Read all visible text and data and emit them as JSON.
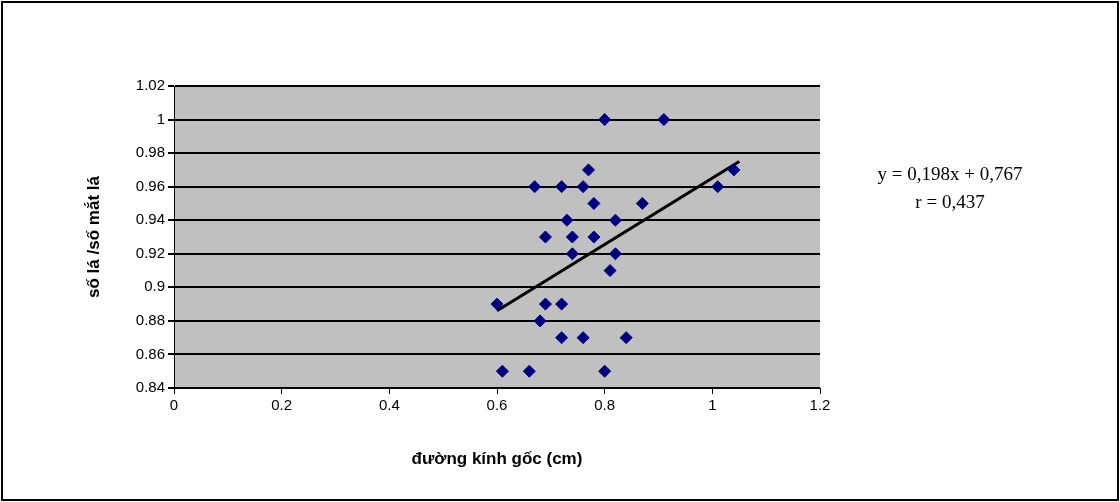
{
  "chart_data": {
    "type": "scatter",
    "xlabel": "đường kính gốc (cm)",
    "ylabel": "số lá /số mắt lá",
    "xlim": [
      0,
      1.2
    ],
    "xticks": [
      0,
      0.2,
      0.4,
      0.6,
      0.8,
      1,
      1.2
    ],
    "ylim": [
      0.84,
      1.02
    ],
    "yticks": [
      0.84,
      0.86,
      0.88,
      0.9,
      0.92,
      0.94,
      0.96,
      0.98,
      1,
      1.02
    ],
    "grid": "y",
    "legend": false,
    "marker": "diamond",
    "annotations": [
      "y = 0,198x + 0,767",
      "r = 0,437"
    ],
    "series": [
      {
        "color": "#000080",
        "x": [
          0.8,
          0.91,
          0.77,
          0.67,
          0.72,
          0.76,
          1.01,
          1.04,
          0.78,
          0.87,
          0.73,
          0.82,
          0.69,
          0.74,
          0.78,
          0.74,
          0.82,
          0.81,
          0.6,
          0.69,
          0.72,
          0.68,
          0.72,
          0.76,
          0.84,
          0.61,
          0.66,
          0.8
        ],
        "values": [
          1,
          1,
          0.97,
          0.96,
          0.96,
          0.96,
          0.96,
          0.97,
          0.95,
          0.95,
          0.94,
          0.94,
          0.93,
          0.93,
          0.93,
          0.92,
          0.92,
          0.91,
          0.89,
          0.89,
          0.89,
          0.88,
          0.87,
          0.87,
          0.87,
          0.85,
          0.85,
          0.85
        ]
      },
      {
        "type": "line",
        "color": "#000000",
        "x": [
          0.6,
          1.05
        ],
        "values": [
          0.886,
          0.975
        ],
        "marker": "none"
      }
    ]
  }
}
